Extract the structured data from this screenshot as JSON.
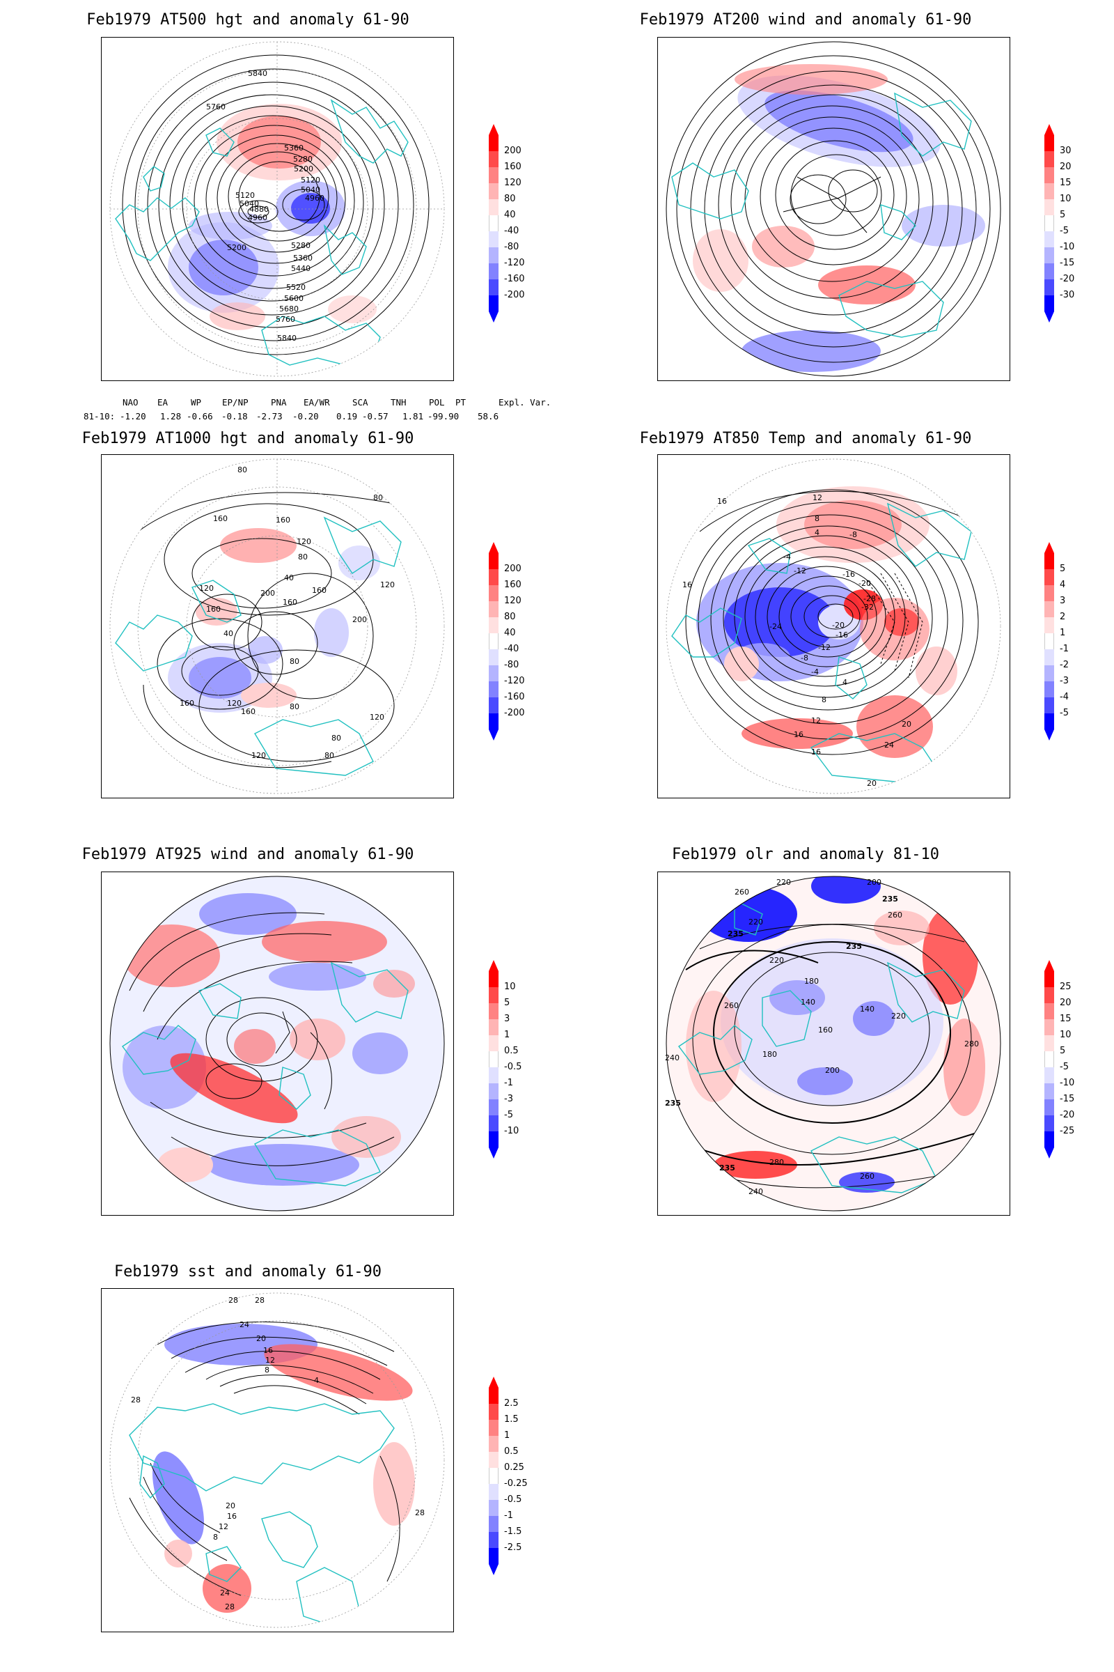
{
  "panels": [
    {
      "id": "p1",
      "title": "Feb1979 AT500 hgt and anomaly 61-90",
      "colorbar": [
        "200",
        "160",
        "120",
        "80",
        "40",
        "-40",
        "-80",
        "-120",
        "-160",
        "-200"
      ],
      "contour_labels": [
        "5840",
        "5760",
        "5360",
        "5280",
        "5200",
        "5120",
        "5040",
        "4960",
        "5120",
        "5040",
        "4960",
        "4880",
        "5200",
        "5280",
        "5360",
        "5440",
        "5520",
        "5600",
        "5680",
        "5760",
        "5840"
      ],
      "anomaly_blobs": [
        {
          "sign": "pos",
          "pos": "top-center"
        },
        {
          "sign": "neg",
          "pos": "center"
        },
        {
          "sign": "neg",
          "pos": "left-center"
        },
        {
          "sign": "pos",
          "pos": "bottom-center"
        }
      ]
    },
    {
      "id": "p2",
      "title": "Feb1979 AT200 wind and anomaly 61-90",
      "colorbar": [
        "30",
        "20",
        "15",
        "10",
        "5",
        "-5",
        "-10",
        "-15",
        "-20",
        "-30"
      ]
    },
    {
      "id": "p3",
      "title": "Feb1979 AT1000 hgt and anomaly 61-90",
      "colorbar": [
        "200",
        "160",
        "120",
        "80",
        "40",
        "-40",
        "-80",
        "-120",
        "-160",
        "-200"
      ],
      "contour_labels": [
        "80",
        "80",
        "160",
        "160",
        "120",
        "80",
        "40",
        "200",
        "160",
        "120",
        "160",
        "200",
        "160",
        "120",
        "40",
        "80",
        "120",
        "160",
        "80",
        "120",
        "120",
        "80",
        "80",
        "160"
      ]
    },
    {
      "id": "p4",
      "title": "Feb1979 AT850 Temp and anomaly 61-90",
      "colorbar": [
        "5",
        "4",
        "3",
        "2",
        "1",
        "-1",
        "-2",
        "-3",
        "-4",
        "-5"
      ],
      "contour_labels": [
        "16",
        "12",
        "8",
        "4",
        "-8",
        "-4",
        "-12",
        "16",
        "-16",
        "-20",
        "-28",
        "-32",
        "-24",
        "-20",
        "-16",
        "-12",
        "-8",
        "-4",
        "4",
        "8",
        "12",
        "16",
        "20",
        "24",
        "16",
        "20"
      ]
    },
    {
      "id": "p5",
      "title": "Feb1979 AT925 wind and anomaly 61-90",
      "colorbar": [
        "10",
        "5",
        "3",
        "1",
        "0.5",
        "-0.5",
        "-1",
        "-3",
        "-5",
        "-10"
      ]
    },
    {
      "id": "p6",
      "title": "Feb1979 olr and anomaly 81-10",
      "colorbar": [
        "25",
        "20",
        "15",
        "10",
        "5",
        "-5",
        "-10",
        "-15",
        "-20",
        "-25"
      ],
      "contour_labels": [
        "260",
        "220",
        "200",
        "235",
        "220",
        "235",
        "260",
        "235",
        "220",
        "180",
        "140",
        "140",
        "160",
        "180",
        "200",
        "220",
        "260",
        "280",
        "240",
        "235",
        "280",
        "260",
        "235",
        "240"
      ]
    },
    {
      "id": "p7",
      "title": "Feb1979 sst and anomaly 61-90",
      "colorbar": [
        "2.5",
        "1.5",
        "1",
        "0.5",
        "0.25",
        "-0.25",
        "-0.5",
        "-1",
        "-1.5",
        "-2.5"
      ],
      "contour_labels": [
        "28",
        "28",
        "24",
        "20",
        "16",
        "12",
        "8",
        "4",
        "28",
        "20",
        "16",
        "12",
        "8",
        "24",
        "28",
        "28"
      ]
    }
  ],
  "teleconnection": {
    "headers": [
      "NAO",
      "EA",
      "WP",
      "EP/NP",
      "PNA",
      "EA/WR",
      "SCA",
      "TNH",
      "POL",
      "PT",
      "Expl. Var."
    ],
    "row_label": "81-10:",
    "values": [
      "-1.20",
      "1.28",
      "-0.66",
      "-0.18",
      "-2.73",
      "-0.20",
      "0.19",
      "-0.57",
      "1.81",
      "-99.90",
      "58.6"
    ]
  },
  "colors": {
    "positive": [
      "#ff0000",
      "#ff4a4a",
      "#ff8282",
      "#ffb4b4",
      "#ffe0e0"
    ],
    "negative": [
      "#e0e0ff",
      "#b4b4ff",
      "#8282ff",
      "#4a4aff",
      "#0000ff"
    ],
    "coast": "#20c0c0",
    "contour": "#000000"
  }
}
